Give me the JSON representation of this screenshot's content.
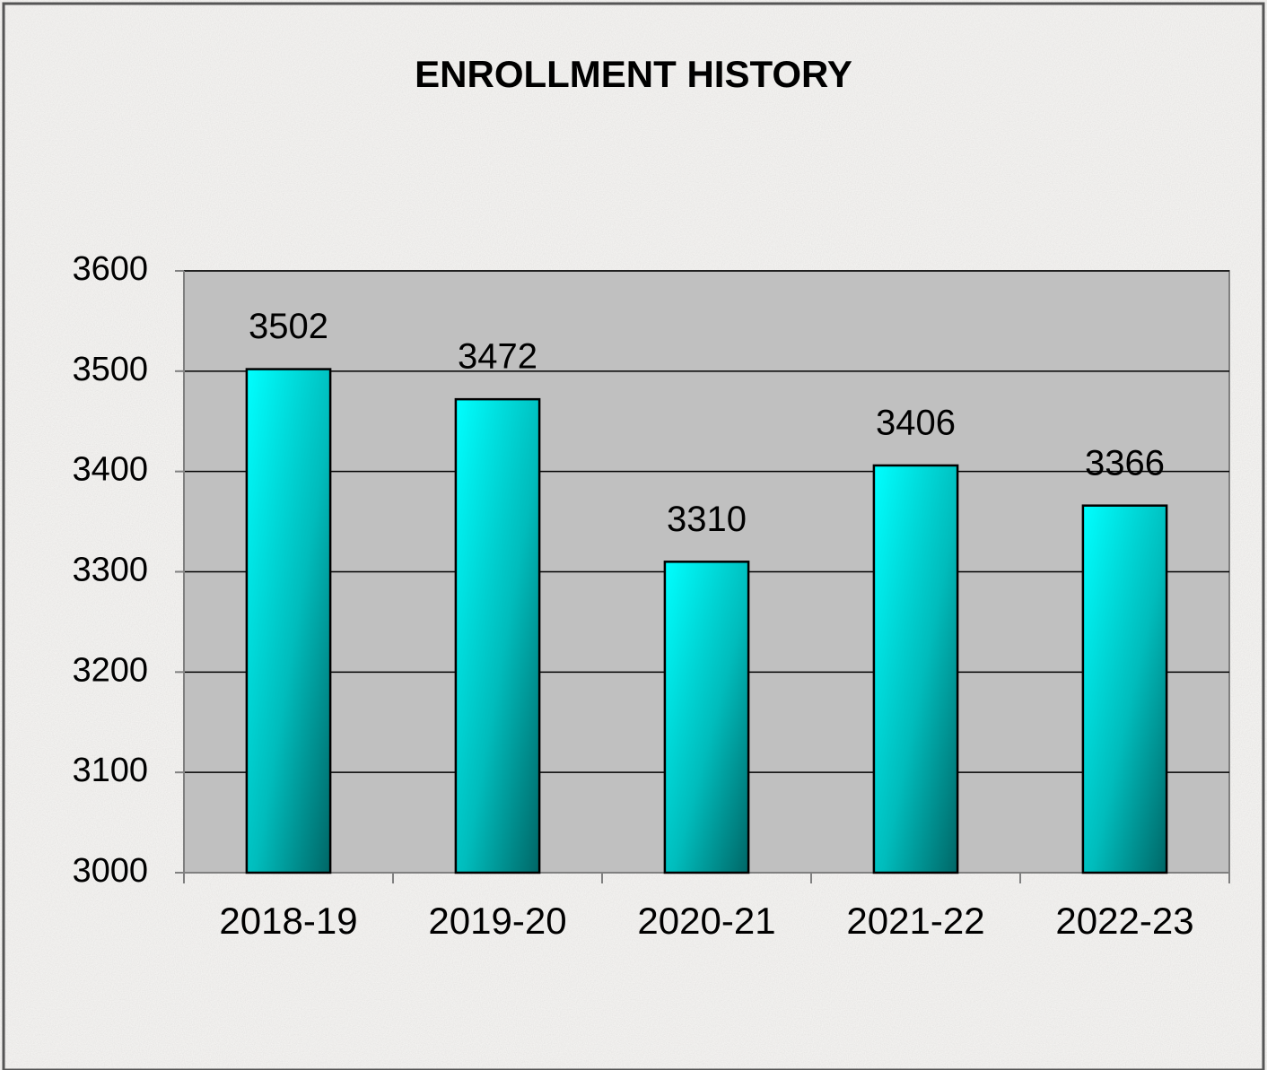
{
  "chart_data": {
    "type": "bar",
    "title": "ENROLLMENT HISTORY",
    "categories": [
      "2018-19",
      "2019-20",
      "2020-21",
      "2021-22",
      "2022-23"
    ],
    "values": [
      3502,
      3472,
      3310,
      3406,
      3366
    ],
    "color": "#00ffff",
    "ylim": [
      3000,
      3600
    ],
    "yticks": [
      3000,
      3100,
      3200,
      3300,
      3400,
      3500,
      3600
    ],
    "grid": true
  }
}
